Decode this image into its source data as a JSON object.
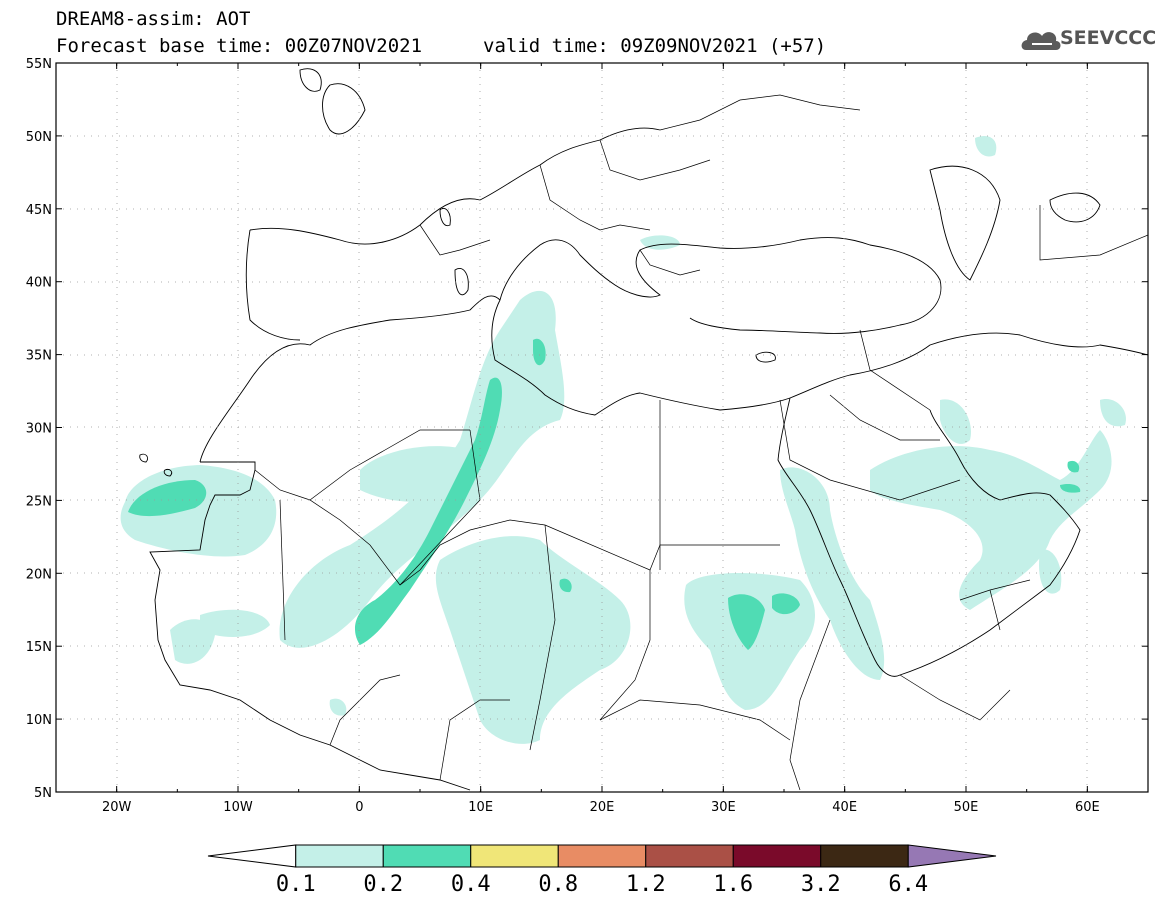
{
  "header": {
    "title": "DREAM8-assim: AOT",
    "forecast_base": "Forecast base time: 00Z07NOV2021",
    "valid_time": "valid time: 09Z09NOV2021 (+57)",
    "logo_text": "SEEVCCC"
  },
  "map": {
    "lat_range": [
      5,
      55
    ],
    "lon_range": [
      -25,
      65
    ],
    "lat_labels": [
      "55N",
      "50N",
      "45N",
      "40N",
      "35N",
      "30N",
      "25N",
      "20N",
      "15N",
      "10N",
      "5N"
    ],
    "lon_labels": [
      "20W",
      "10W",
      "0",
      "10E",
      "20E",
      "30E",
      "40E",
      "50E",
      "60E"
    ],
    "grid": true
  },
  "colorbar": {
    "labels": [
      "0.1",
      "0.2",
      "0.4",
      "0.8",
      "1.2",
      "1.6",
      "3.2",
      "6.4"
    ],
    "colors": [
      "#ffffff",
      "#c4f0e8",
      "#50dcb4",
      "#f0e678",
      "#e88c64",
      "#aa5046",
      "#7a0a2a",
      "#3c2814",
      "#9678b4"
    ]
  }
}
